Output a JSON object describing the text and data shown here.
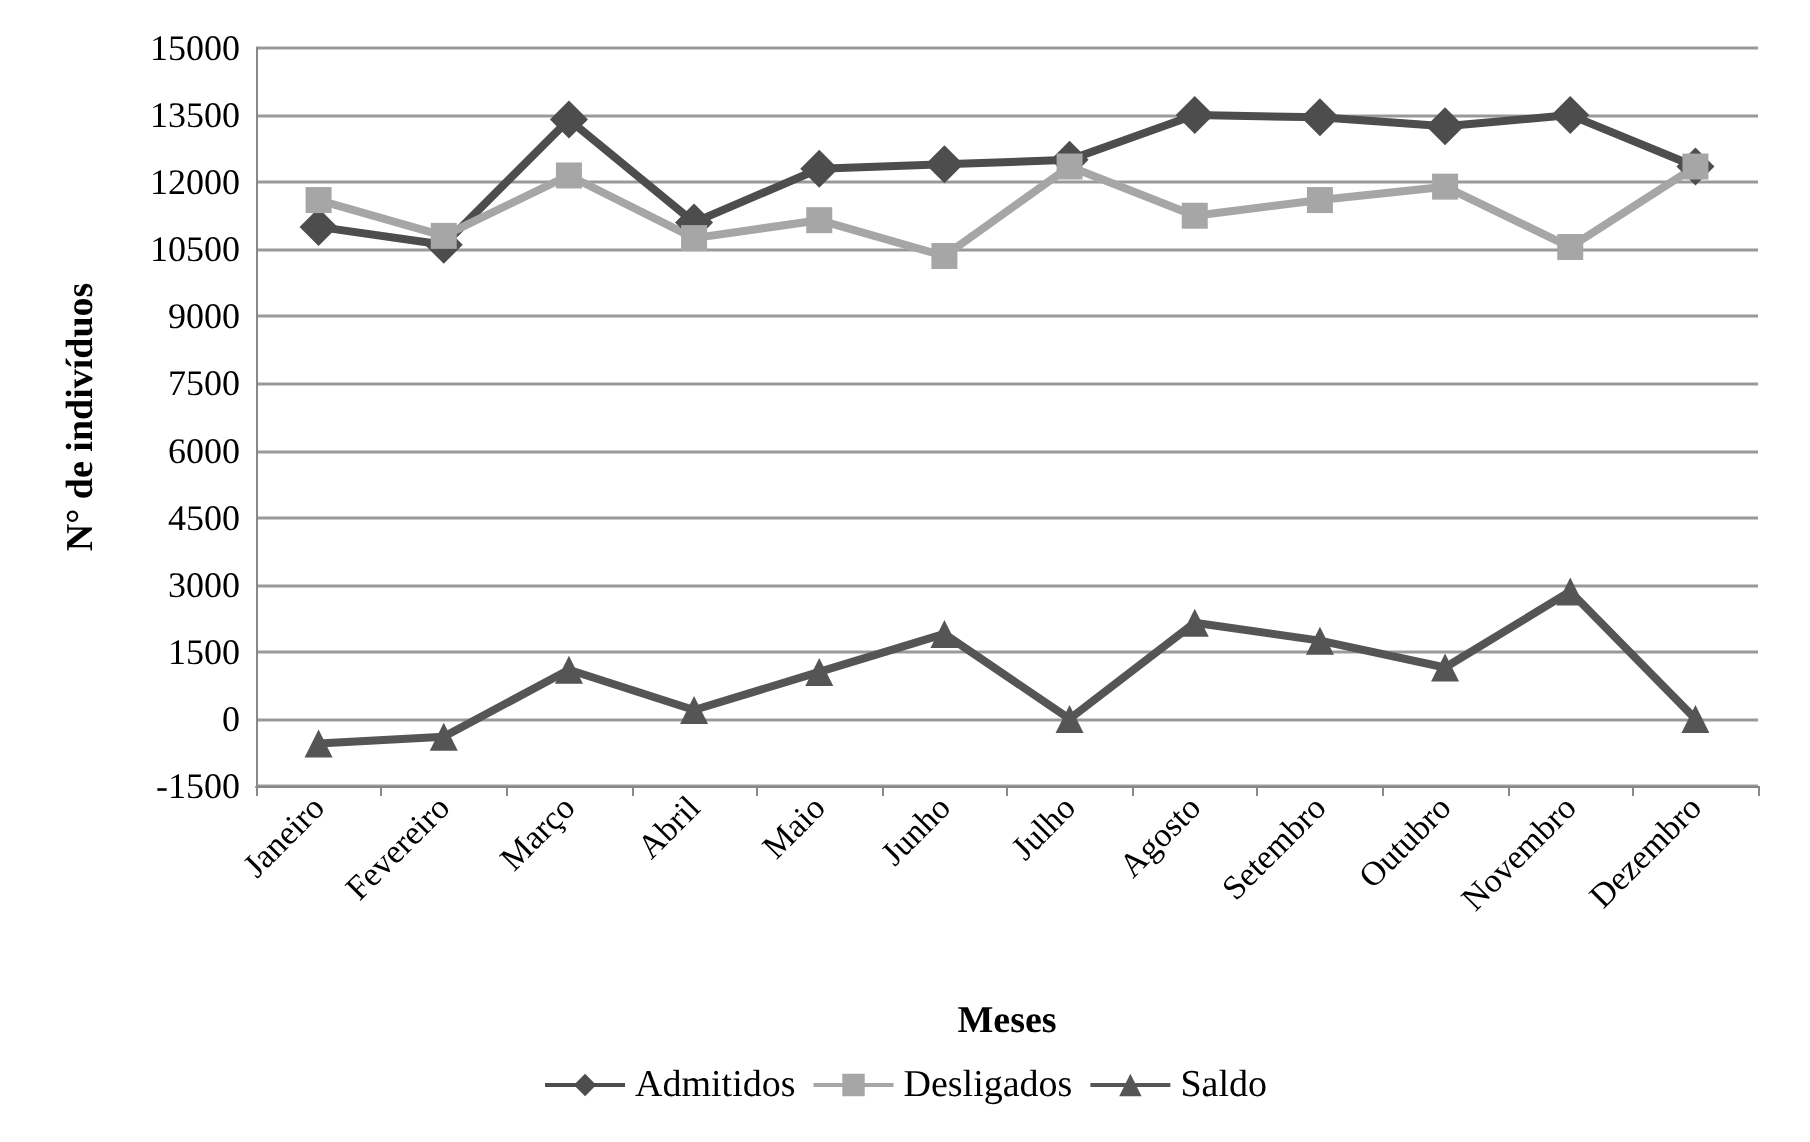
{
  "chart_data": {
    "type": "line",
    "xlabel": "Meses",
    "ylabel": "N° de indivíduos",
    "categories": [
      "Janeiro",
      "Fevereiro",
      "Março",
      "Abril",
      "Maio",
      "Junho",
      "Julho",
      "Agosto",
      "Setembro",
      "Outubro",
      "Novembro",
      "Dezembro"
    ],
    "series": [
      {
        "name": "Admitidos",
        "color": "#4d4d4d",
        "marker": "diamond",
        "values": [
          11000,
          10600,
          13400,
          11100,
          12300,
          12400,
          12500,
          13500,
          13450,
          13250,
          13500,
          12350
        ]
      },
      {
        "name": "Desligados",
        "color": "#a6a6a6",
        "marker": "square",
        "values": [
          11600,
          10800,
          12150,
          10750,
          11150,
          10350,
          12350,
          11250,
          11600,
          11900,
          10550,
          12350
        ]
      },
      {
        "name": "Saldo",
        "color": "#555555",
        "marker": "triangle",
        "values": [
          -550,
          -400,
          1100,
          200,
          1050,
          1900,
          0,
          2150,
          1750,
          1150,
          2850,
          0
        ]
      }
    ],
    "ylim": [
      -1500,
      15000
    ],
    "yticks": [
      -1500,
      0,
      1500,
      3000,
      4500,
      6000,
      7500,
      9000,
      10500,
      12000,
      13500,
      15000
    ],
    "grid": "y",
    "legend": "bottom",
    "line_style": "solid"
  }
}
